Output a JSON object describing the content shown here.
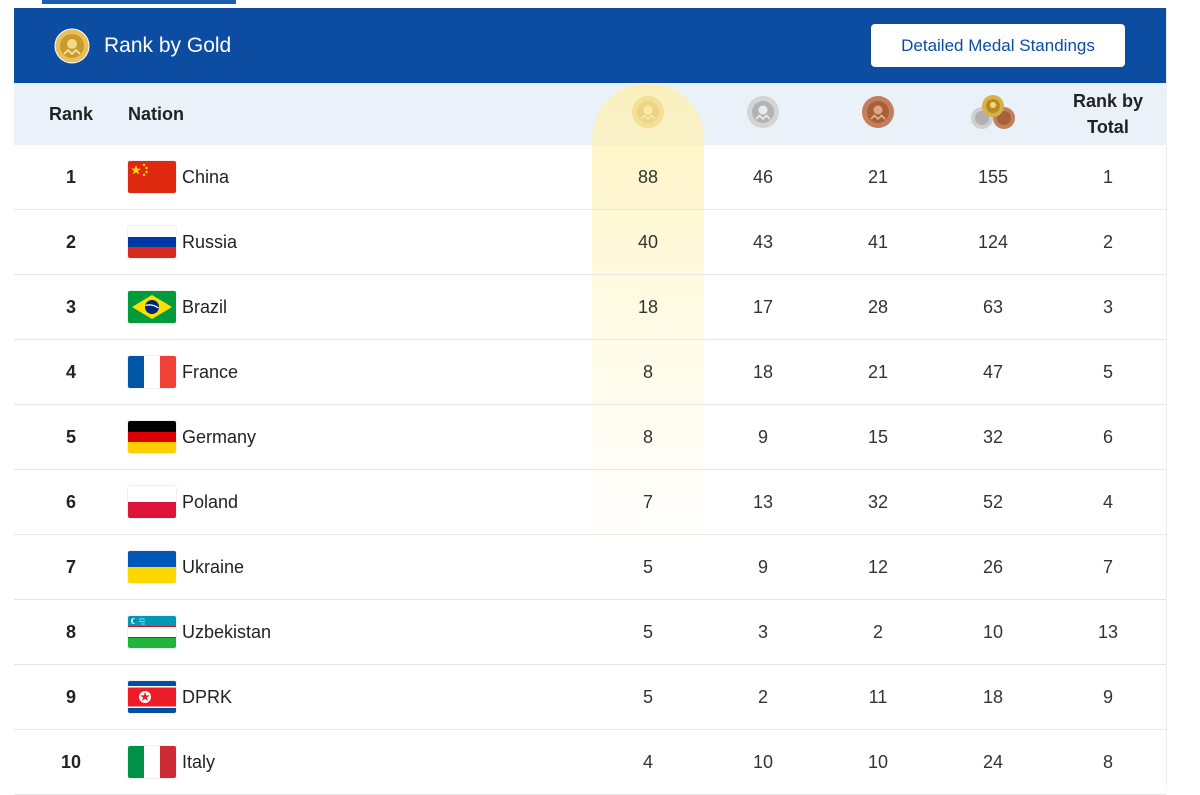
{
  "banner": {
    "title": "Rank by Gold",
    "button_label": "Detailed Medal Standings"
  },
  "header": {
    "rank": "Rank",
    "nation": "Nation",
    "rank_by_total_line1": "Rank by",
    "rank_by_total_line2": "Total"
  },
  "colors": {
    "banner_blue": "#0c4da2",
    "header_bg": "#eaf1f9",
    "gold": "#d4a93a",
    "silver": "#c4c4c4",
    "bronze": "#b8734e"
  },
  "rows": [
    {
      "rank": "1",
      "nation": "China",
      "gold": "88",
      "silver": "46",
      "bronze": "21",
      "total": "155",
      "rank_total": "1",
      "flag": "china-flag-icon"
    },
    {
      "rank": "2",
      "nation": "Russia",
      "gold": "40",
      "silver": "43",
      "bronze": "41",
      "total": "124",
      "rank_total": "2",
      "flag": "russia-flag-icon"
    },
    {
      "rank": "3",
      "nation": "Brazil",
      "gold": "18",
      "silver": "17",
      "bronze": "28",
      "total": "63",
      "rank_total": "3",
      "flag": "brazil-flag-icon"
    },
    {
      "rank": "4",
      "nation": "France",
      "gold": "8",
      "silver": "18",
      "bronze": "21",
      "total": "47",
      "rank_total": "5",
      "flag": "france-flag-icon"
    },
    {
      "rank": "5",
      "nation": "Germany",
      "gold": "8",
      "silver": "9",
      "bronze": "15",
      "total": "32",
      "rank_total": "6",
      "flag": "germany-flag-icon"
    },
    {
      "rank": "6",
      "nation": "Poland",
      "gold": "7",
      "silver": "13",
      "bronze": "32",
      "total": "52",
      "rank_total": "4",
      "flag": "poland-flag-icon"
    },
    {
      "rank": "7",
      "nation": "Ukraine",
      "gold": "5",
      "silver": "9",
      "bronze": "12",
      "total": "26",
      "rank_total": "7",
      "flag": "ukraine-flag-icon"
    },
    {
      "rank": "8",
      "nation": "Uzbekistan",
      "gold": "5",
      "silver": "3",
      "bronze": "2",
      "total": "10",
      "rank_total": "13",
      "flag": "uzbekistan-flag-icon"
    },
    {
      "rank": "9",
      "nation": "DPRK",
      "gold": "5",
      "silver": "2",
      "bronze": "11",
      "total": "18",
      "rank_total": "9",
      "flag": "dprk-flag-icon"
    },
    {
      "rank": "10",
      "nation": "Italy",
      "gold": "4",
      "silver": "10",
      "bronze": "10",
      "total": "24",
      "rank_total": "8",
      "flag": "italy-flag-icon"
    }
  ]
}
